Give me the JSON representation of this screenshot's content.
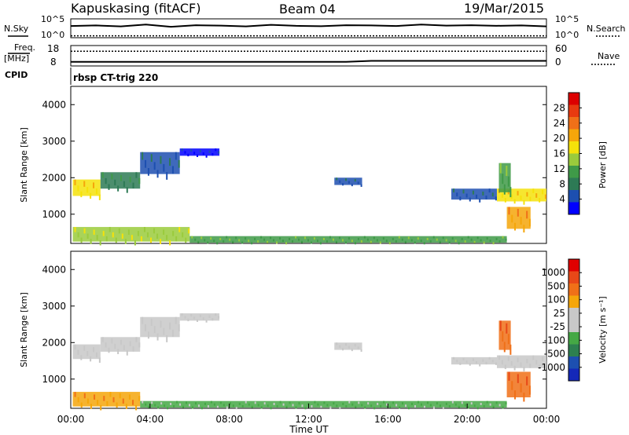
{
  "header": {
    "station": "Kapuskasing (fitACF)",
    "beam": "Beam 04",
    "date": "19/Mar/2015"
  },
  "left_labels": {
    "nsky": "N.Sky",
    "freq": "Freq.",
    "freq_unit": "[MHz]",
    "cpid": "CPID"
  },
  "right_labels": {
    "nsearch": "N.Search",
    "nave": "Nave"
  },
  "cpid_text": "rbsp CT-trig 220",
  "chart_data": [
    {
      "type": "line",
      "id": "noise",
      "left_ticks": [
        "10^5",
        "10^0"
      ],
      "right_ticks": [
        "10^5",
        "10^0"
      ],
      "series": [
        {
          "values_y_frac": [
            0.62,
            0.65,
            0.6,
            0.7,
            0.58,
            0.66,
            0.64,
            0.6,
            0.68,
            0.63,
            0.61,
            0.66,
            0.65,
            0.62,
            0.7,
            0.64,
            0.66,
            0.63,
            0.65,
            0.6
          ]
        },
        {
          "values_y_frac": [
            0.1
          ]
        }
      ]
    },
    {
      "type": "line",
      "id": "frequency",
      "left_ticks": [
        "18",
        "8"
      ],
      "right_ticks": [
        "60",
        "0"
      ],
      "series": [
        {
          "values_y_frac": [
            0.2,
            0.2,
            0.2,
            0.2,
            0.2,
            0.2,
            0.2,
            0.2,
            0.2,
            0.2,
            0.2,
            0.2,
            0.25,
            0.25,
            0.25,
            0.25,
            0.25,
            0.25,
            0.25,
            0.25
          ]
        },
        {
          "values_y_frac": [
            0.72
          ]
        }
      ]
    },
    {
      "type": "heatmap",
      "id": "power",
      "ylabel": "Slant Range [km]",
      "xlabel": "",
      "yticks": [
        "1000",
        "2000",
        "3000",
        "4000"
      ],
      "xticks": [],
      "ylim": [
        200,
        4500
      ],
      "xlim": [
        0,
        24
      ],
      "colorbar": {
        "label": "Power [dB]",
        "ticks": [
          "4",
          "8",
          "12",
          "16",
          "20",
          "24",
          "28"
        ],
        "colors": [
          "#0000ff",
          "#1d4fb0",
          "#2d7a55",
          "#3f9a48",
          "#9acb3c",
          "#f5e20a",
          "#f5a60a",
          "#f07018",
          "#e83a10",
          "#dd0000"
        ]
      },
      "bands": [
        {
          "x0": 0.1,
          "x1": 1.5,
          "y0": 1500,
          "y1": 1950,
          "c": 5
        },
        {
          "x0": 1.5,
          "x1": 3.5,
          "y0": 1700,
          "y1": 2150,
          "c": 2
        },
        {
          "x0": 3.5,
          "x1": 5.5,
          "y0": 2100,
          "y1": 2700,
          "c": 1
        },
        {
          "x0": 5.5,
          "x1": 7.5,
          "y0": 2600,
          "y1": 2800,
          "c": 0
        },
        {
          "x0": 13.3,
          "x1": 14.7,
          "y0": 1800,
          "y1": 2000,
          "c": 1
        },
        {
          "x0": 19.2,
          "x1": 21.5,
          "y0": 1400,
          "y1": 1700,
          "c": 1
        },
        {
          "x0": 21.5,
          "x1": 24.0,
          "y0": 1350,
          "y1": 1700,
          "c": 5
        },
        {
          "x0": 21.6,
          "x1": 22.2,
          "y0": 1600,
          "y1": 2400,
          "c": 3
        },
        {
          "x0": 22.0,
          "x1": 23.2,
          "y0": 600,
          "y1": 1200,
          "c": 6
        },
        {
          "x0": 0.1,
          "x1": 6.0,
          "y0": 250,
          "y1": 650,
          "c": 4
        },
        {
          "x0": 6.0,
          "x1": 22.0,
          "y0": 220,
          "y1": 400,
          "c": 3
        }
      ]
    },
    {
      "type": "heatmap",
      "id": "velocity",
      "ylabel": "Slant Range [km]",
      "xlabel": "Time UT",
      "yticks": [
        "1000",
        "2000",
        "3000",
        "4000"
      ],
      "xticks": [
        "00:00",
        "04:00",
        "08:00",
        "12:00",
        "16:00",
        "20:00",
        "00:00"
      ],
      "ylim": [
        200,
        4500
      ],
      "xlim": [
        0,
        24
      ],
      "colorbar": {
        "label": "Velocity [m s⁻¹]",
        "ticks": [
          "1000",
          "500",
          "100",
          "25",
          "-25",
          "-100",
          "-500",
          "-1000"
        ],
        "colors": [
          "#1428b8",
          "#1d4fb0",
          "#2d8050",
          "#45a845",
          "#c8c8c8",
          "#c8c8c8",
          "#f5a60a",
          "#f07018",
          "#e84818",
          "#e00000"
        ]
      },
      "bands": [
        {
          "x0": 0.1,
          "x1": 1.5,
          "y0": 1550,
          "y1": 1950,
          "c": 4
        },
        {
          "x0": 1.5,
          "x1": 3.5,
          "y0": 1750,
          "y1": 2150,
          "c": 4
        },
        {
          "x0": 3.5,
          "x1": 5.5,
          "y0": 2150,
          "y1": 2700,
          "c": 4
        },
        {
          "x0": 5.5,
          "x1": 7.5,
          "y0": 2600,
          "y1": 2800,
          "c": 4
        },
        {
          "x0": 13.3,
          "x1": 14.7,
          "y0": 1800,
          "y1": 2000,
          "c": 4
        },
        {
          "x0": 19.2,
          "x1": 21.5,
          "y0": 1400,
          "y1": 1600,
          "c": 4
        },
        {
          "x0": 21.5,
          "x1": 24.0,
          "y0": 1300,
          "y1": 1650,
          "c": 4
        },
        {
          "x0": 21.6,
          "x1": 22.2,
          "y0": 1800,
          "y1": 2600,
          "c": 7
        },
        {
          "x0": 22.0,
          "x1": 23.2,
          "y0": 500,
          "y1": 1200,
          "c": 7
        },
        {
          "x0": 0.1,
          "x1": 3.5,
          "y0": 250,
          "y1": 650,
          "c": 6
        },
        {
          "x0": 3.5,
          "x1": 22.0,
          "y0": 220,
          "y1": 400,
          "c": 3
        }
      ]
    }
  ]
}
